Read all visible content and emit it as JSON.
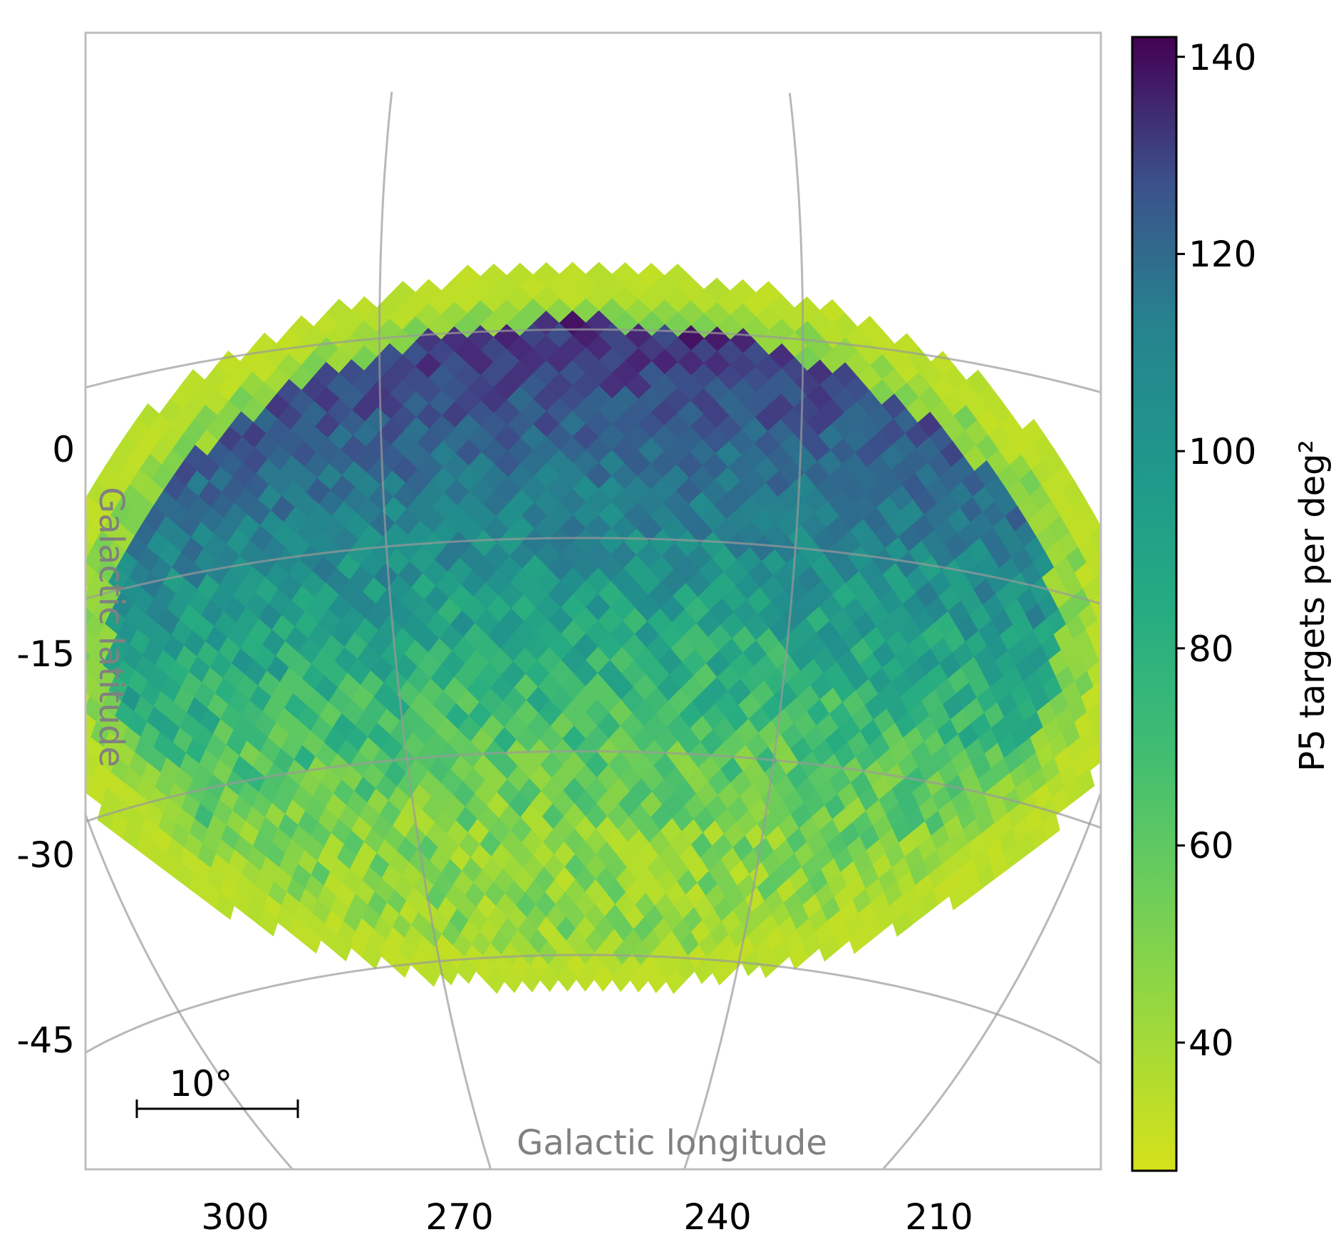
{
  "chart_data": {
    "type": "heatmap",
    "title": "",
    "projection": "orthographic sky map (HEALPix pixels)",
    "xlabel": "Galactic longitude",
    "ylabel": "Galactic latitude",
    "x_ticks": [
      "210",
      "240",
      "270",
      "300"
    ],
    "y_ticks": [
      "0",
      "-15",
      "-30",
      "-45"
    ],
    "graticule_longitudes": [
      210,
      240,
      270,
      300
    ],
    "graticule_latitudes": [
      0,
      -15,
      -30,
      -45
    ],
    "scale_bar_label": "10°",
    "colorbar": {
      "label": "P5 targets per deg²",
      "colormap": "viridis",
      "range": [
        27,
        142
      ],
      "ticks": [
        "40",
        "60",
        "80",
        "100",
        "120",
        "140"
      ],
      "tick_values": [
        40,
        60,
        80,
        100,
        120,
        140
      ]
    },
    "field_extent": {
      "lon_range": [
        213,
        298
      ],
      "lat_range": [
        -47,
        4
      ]
    },
    "density_pattern": {
      "high_density_region": "top band near latitude 0 to -8 (values 110-142)",
      "middle_region": "latitude -15 to -30 (values 70-95)",
      "low_density_region": "bottom and outer rim (values 30-55)",
      "peak_value": 142,
      "edge_value": 30
    },
    "grid_on": true,
    "legend": "colorbar right"
  }
}
